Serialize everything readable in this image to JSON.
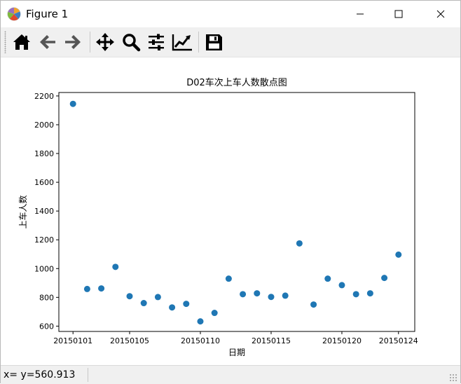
{
  "window": {
    "title": "Figure 1",
    "icon": "matplotlib-icon",
    "controls": [
      "minimize-icon",
      "maximize-icon",
      "close-icon"
    ]
  },
  "toolbar": {
    "buttons": [
      {
        "name": "home",
        "icon": "home-icon"
      },
      {
        "name": "back",
        "icon": "arrow-left-icon"
      },
      {
        "name": "forward",
        "icon": "arrow-right-icon"
      },
      {
        "name": "pan",
        "icon": "move-icon"
      },
      {
        "name": "zoom",
        "icon": "magnifier-icon"
      },
      {
        "name": "subplots",
        "icon": "sliders-icon"
      },
      {
        "name": "edit-axes",
        "icon": "chart-line-icon"
      },
      {
        "name": "save",
        "icon": "floppy-disk-icon"
      }
    ]
  },
  "status": {
    "text": "x= y=560.913"
  },
  "chart_data": {
    "type": "scatter",
    "title": "D02车次上车人数散点图",
    "xlabel": "日期",
    "ylabel": "上车人数",
    "series_color": "#1f77b4",
    "xlim": [
      20150100,
      20150125.15
    ],
    "ylim": [
      563,
      2224
    ],
    "x_ticks": [
      "20150101",
      "20150105",
      "20150110",
      "20150115",
      "20150120",
      "20150124"
    ],
    "y_ticks": [
      600,
      800,
      1000,
      1200,
      1400,
      1600,
      1800,
      2000,
      2200
    ],
    "x": [
      "20150101",
      "20150102",
      "20150103",
      "20150104",
      "20150105",
      "20150106",
      "20150107",
      "20150108",
      "20150109",
      "20150110",
      "20150111",
      "20150112",
      "20150113",
      "20150114",
      "20150115",
      "20150116",
      "20150117",
      "20150118",
      "20150119",
      "20150120",
      "20150121",
      "20150122",
      "20150123",
      "20150124"
    ],
    "y": [
      2145,
      858,
      862,
      1012,
      808,
      760,
      802,
      730,
      755,
      633,
      692,
      930,
      822,
      828,
      803,
      812,
      1175,
      750,
      930,
      885,
      822,
      828,
      935,
      1097
    ],
    "grid": false,
    "legend": "none"
  }
}
